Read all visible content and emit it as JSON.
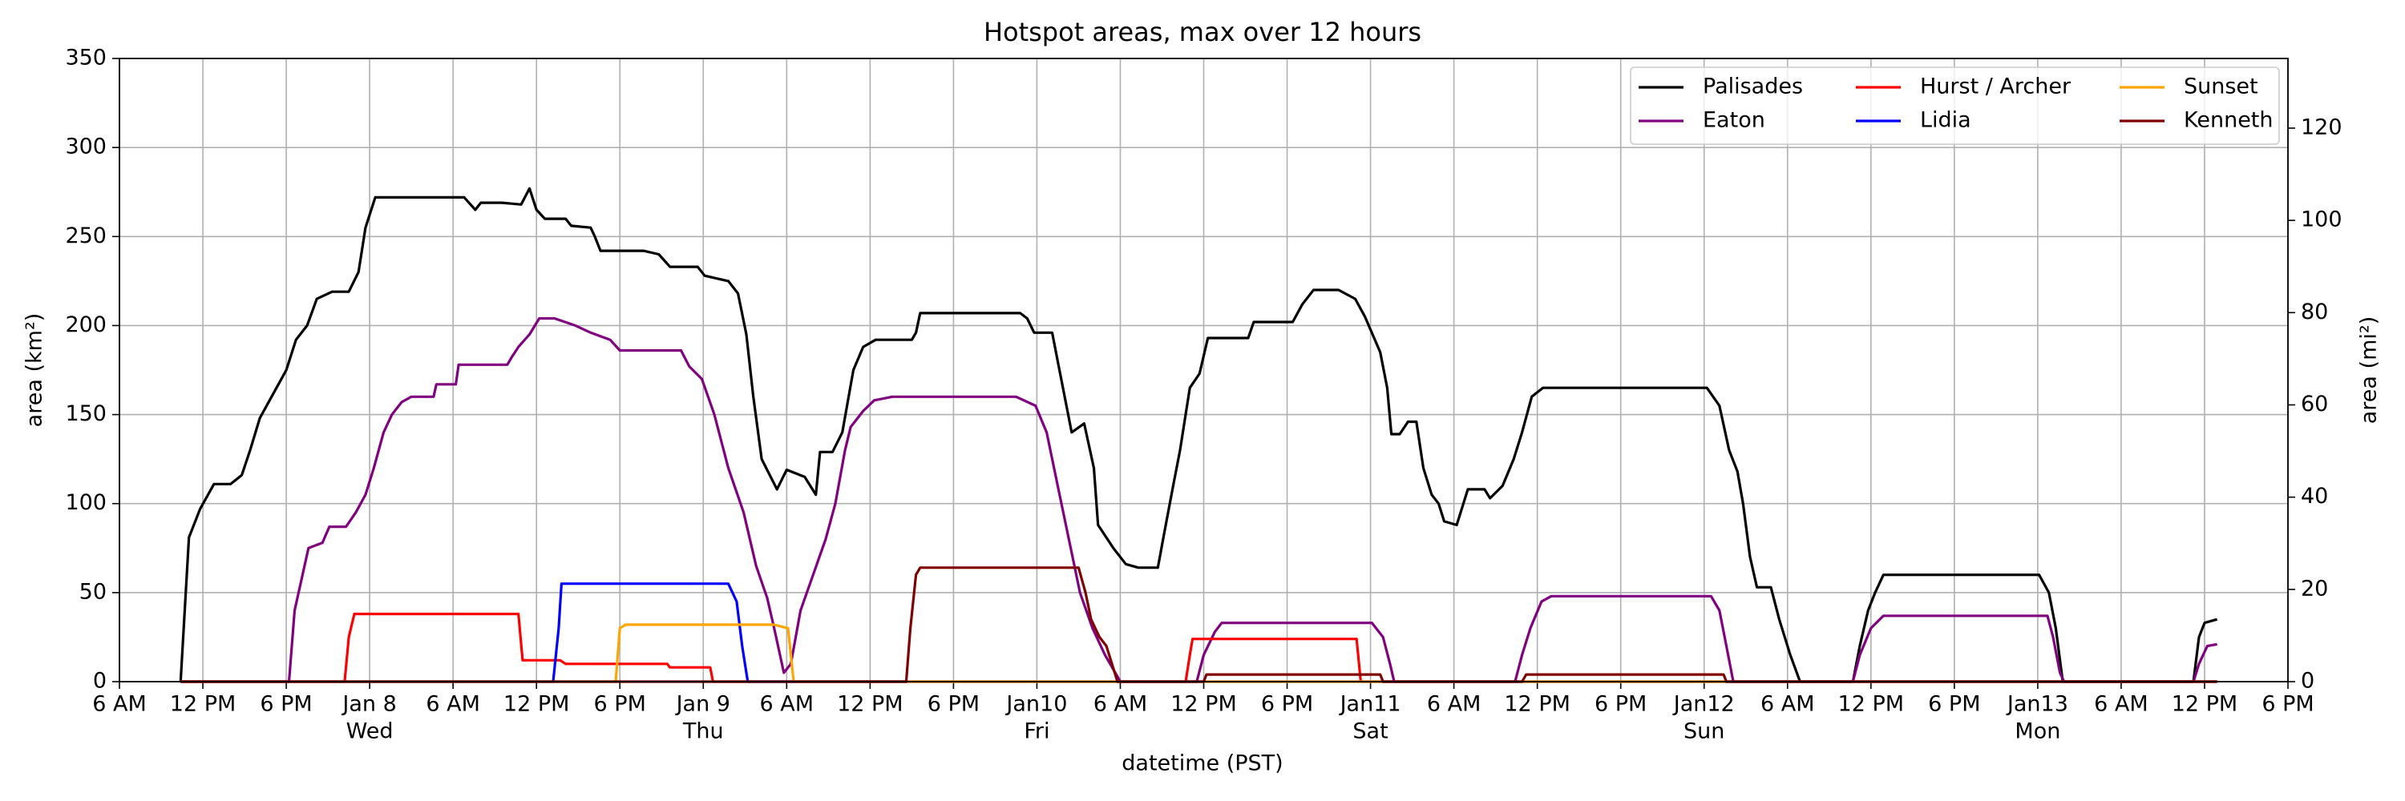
{
  "chart_data": {
    "type": "line",
    "title": "Hotspot areas, max over 12 hours",
    "xlabel": "datetime (PST)",
    "ylabel": "area (km²)",
    "y2label": "area (mi²)",
    "xlim": [
      0,
      156
    ],
    "xticks": [
      {
        "value": 0,
        "label": "6 AM"
      },
      {
        "value": 6,
        "label": "12 PM"
      },
      {
        "value": 12,
        "label": "6 PM"
      },
      {
        "value": 18,
        "label": "Jan 8",
        "sublabel": "Wed"
      },
      {
        "value": 24,
        "label": "6 AM"
      },
      {
        "value": 30,
        "label": "12 PM"
      },
      {
        "value": 36,
        "label": "6 PM"
      },
      {
        "value": 42,
        "label": "Jan 9",
        "sublabel": "Thu"
      },
      {
        "value": 48,
        "label": "6 AM"
      },
      {
        "value": 54,
        "label": "12 PM"
      },
      {
        "value": 60,
        "label": "6 PM"
      },
      {
        "value": 66,
        "label": "Jan10",
        "sublabel": "Fri"
      },
      {
        "value": 72,
        "label": "6 AM"
      },
      {
        "value": 78,
        "label": "12 PM"
      },
      {
        "value": 84,
        "label": "6 PM"
      },
      {
        "value": 90,
        "label": "Jan11",
        "sublabel": "Sat"
      },
      {
        "value": 96,
        "label": "6 AM"
      },
      {
        "value": 102,
        "label": "12 PM"
      },
      {
        "value": 108,
        "label": "6 PM"
      },
      {
        "value": 114,
        "label": "Jan12",
        "sublabel": "Sun"
      },
      {
        "value": 120,
        "label": "6 AM"
      },
      {
        "value": 126,
        "label": "12 PM"
      },
      {
        "value": 132,
        "label": "6 PM"
      },
      {
        "value": 138,
        "label": "Jan13",
        "sublabel": "Mon"
      },
      {
        "value": 144,
        "label": "6 AM"
      },
      {
        "value": 150,
        "label": "12 PM"
      },
      {
        "value": 156,
        "label": "6 PM"
      }
    ],
    "ylim": [
      0,
      350
    ],
    "yticks": [
      0,
      50,
      100,
      150,
      200,
      250,
      300,
      350
    ],
    "y2lim": [
      0,
      135.1
    ],
    "y2ticks": [
      0,
      20,
      40,
      60,
      80,
      100,
      120
    ],
    "grid": true,
    "legend": "upper right",
    "legend_columns": 3,
    "series": [
      {
        "name": "Palisades",
        "color": "#000000",
        "x": [
          4.4,
          5,
          5.8,
          6.8,
          8,
          8.8,
          9.4,
          10.1,
          11.3,
          12,
          12.7,
          13.5,
          14.2,
          15.3,
          16.5,
          17.2,
          17.7,
          18.4,
          24.8,
          25.6,
          26,
          27.5,
          28.9,
          29.5,
          30,
          30.6,
          32.1,
          32.5,
          33.9,
          34.2,
          34.6,
          37.7,
          38.8,
          39.6,
          41.6,
          42.1,
          43.8,
          44.5,
          45.1,
          45.6,
          46.2,
          47.3,
          48,
          49.3,
          50.1,
          50.4,
          51.3,
          52,
          52.8,
          53.5,
          54.4,
          57,
          57.3,
          57.6,
          64.8,
          65.3,
          65.8,
          67.1,
          67.5,
          68.5,
          69.4,
          70.1,
          70.4,
          71.5,
          72.4,
          73.3,
          74.7,
          75.2,
          75.8,
          76.3,
          77,
          77.7,
          78.3,
          81.2,
          81.6,
          84.4,
          85.1,
          85.9,
          87.7,
          88.9,
          89.6,
          90.7,
          91.2,
          91.5,
          92.1,
          92.7,
          93.3,
          93.8,
          94.4,
          94.9,
          95.3,
          96.2,
          97,
          98.2,
          98.6,
          99.5,
          100.3,
          100.9,
          101.6,
          102.4,
          114.2,
          115.1,
          115.8,
          116.4,
          116.8,
          117.3,
          117.8,
          118.8,
          119.4,
          120.2,
          120.9,
          124.7,
          125.2,
          125.8,
          126.3,
          126.9,
          138.1,
          138.8,
          139.3,
          139.8,
          149.2,
          149.6,
          150,
          150.9
        ],
        "values": [
          0,
          81,
          97,
          111,
          111,
          116,
          130,
          148,
          165,
          175,
          192,
          200,
          215,
          219,
          219,
          230,
          255,
          272,
          272,
          265,
          269,
          269,
          268,
          277,
          265,
          260,
          260,
          256,
          255,
          250,
          242,
          242,
          240,
          233,
          233,
          228,
          225,
          218,
          195,
          160,
          125,
          108,
          119,
          115,
          105,
          129,
          129,
          140,
          175,
          188,
          192,
          192,
          196,
          207,
          207,
          204,
          196,
          196,
          180,
          140,
          145,
          120,
          88,
          75,
          66,
          64,
          64,
          85,
          110,
          130,
          165,
          173,
          193,
          193,
          202,
          202,
          212,
          220,
          220,
          215,
          205,
          185,
          165,
          139,
          139,
          146,
          146,
          120,
          105,
          100,
          90,
          88,
          108,
          108,
          103,
          110,
          125,
          140,
          160,
          165,
          165,
          155,
          130,
          118,
          100,
          70,
          53,
          53,
          35,
          15,
          0,
          0,
          20,
          40,
          50,
          60,
          60,
          50,
          30,
          0,
          0,
          25,
          33,
          35
        ]
      },
      {
        "name": "Eaton",
        "color": "#800080",
        "x": [
          4.4,
          12.2,
          12.6,
          13.6,
          14.6,
          15.1,
          16.3,
          17,
          17.7,
          18.3,
          19,
          19.6,
          20.3,
          21,
          22.6,
          22.8,
          24.2,
          24.4,
          27.9,
          28.2,
          28.7,
          29.5,
          30.2,
          31.3,
          32.8,
          33.9,
          35.3,
          36,
          40.4,
          41,
          41.9,
          42.8,
          43.8,
          44.9,
          45.8,
          46.6,
          47.1,
          47.8,
          48.3,
          49,
          49.9,
          50.8,
          51.5,
          52.2,
          52.6,
          53.5,
          54.3,
          55.6,
          64.5,
          65.9,
          66.7,
          67.5,
          68.3,
          69.1,
          70,
          70.9,
          72,
          77.5,
          78,
          78.8,
          79.3,
          90.1,
          90.9,
          91.4,
          91.7,
          100.4,
          100.9,
          101.5,
          102.3,
          103,
          114.5,
          115.1,
          115.6,
          116.1,
          124.7,
          125.2,
          126,
          126.9,
          138.7,
          139.1,
          139.6,
          139.9,
          149.2,
          149.6,
          150.2,
          150.9
        ],
        "values": [
          0,
          0,
          40,
          75,
          78,
          87,
          87,
          95,
          105,
          120,
          140,
          150,
          157,
          160,
          160,
          167,
          167,
          178,
          178,
          182,
          188,
          195,
          204,
          204,
          200,
          196,
          192,
          186,
          186,
          177,
          170,
          150,
          120,
          95,
          65,
          47,
          30,
          5,
          10,
          40,
          60,
          80,
          100,
          130,
          143,
          152,
          158,
          160,
          160,
          155,
          140,
          110,
          80,
          50,
          30,
          15,
          0,
          0,
          15,
          28,
          33,
          33,
          25,
          10,
          0,
          0,
          15,
          30,
          45,
          48,
          48,
          40,
          20,
          0,
          0,
          15,
          30,
          37,
          37,
          25,
          5,
          0,
          0,
          10,
          20,
          21
        ]
      },
      {
        "name": "Hurst / Archer",
        "color": "#ff0000",
        "x": [
          4.4,
          16.2,
          16.5,
          16.9,
          28.7,
          29,
          31.7,
          32.1,
          39.4,
          39.6,
          42.5,
          42.7,
          76.7,
          77,
          77.2,
          89,
          89.3,
          150.9
        ],
        "values": [
          0,
          0,
          25,
          38,
          38,
          12,
          12,
          10,
          10,
          8,
          8,
          0,
          0,
          15,
          24,
          24,
          0,
          0
        ]
      },
      {
        "name": "Lidia",
        "color": "#0000ff",
        "x": [
          4.4,
          31.2,
          31.6,
          31.8,
          43.8,
          44.4,
          44.8,
          45.1,
          45.2,
          150.9
        ],
        "values": [
          0,
          0,
          30,
          55,
          55,
          45,
          20,
          5,
          0,
          0
        ]
      },
      {
        "name": "Sunset",
        "color": "#ffa500",
        "x": [
          4.4,
          35.7,
          36,
          36.4,
          47.1,
          48.1,
          48.5,
          150.9
        ],
        "values": [
          0,
          0,
          30,
          32,
          32,
          30,
          0,
          0
        ]
      },
      {
        "name": "Kenneth",
        "color": "#800000",
        "x": [
          4.4,
          56.6,
          56.9,
          57.3,
          57.6,
          69,
          69.5,
          69.9,
          70.5,
          71,
          71.6,
          71.8,
          78,
          78.2,
          90.7,
          90.9,
          100.9,
          101.2,
          115.4,
          115.6,
          150.9
        ],
        "values": [
          0,
          0,
          30,
          60,
          64,
          64,
          50,
          35,
          25,
          20,
          5,
          0,
          0,
          4,
          4,
          0,
          0,
          4,
          4,
          0,
          0
        ]
      }
    ]
  }
}
